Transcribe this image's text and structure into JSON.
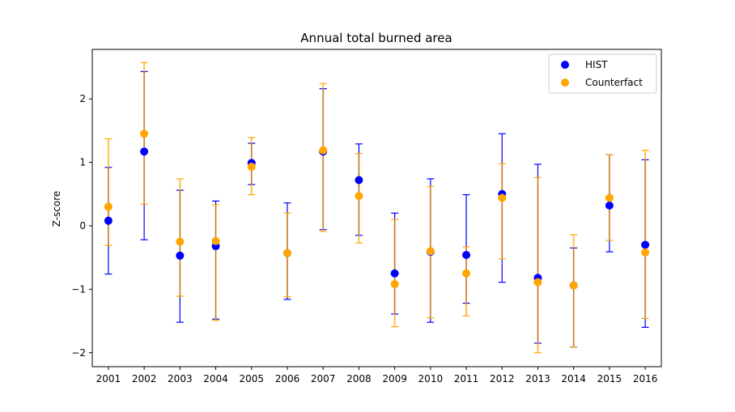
{
  "chart_data": {
    "type": "scatter",
    "title": "Annual total burned area",
    "xlabel": "",
    "ylabel": "Z-score",
    "categories": [
      "2001",
      "2002",
      "2003",
      "2004",
      "2005",
      "2006",
      "2007",
      "2008",
      "2009",
      "2010",
      "2011",
      "2012",
      "2013",
      "2014",
      "2015",
      "2016"
    ],
    "xlim": [
      2000.55,
      2016.45
    ],
    "ylim": [
      -2.22,
      2.78
    ],
    "yticks": [
      -2,
      -1,
      0,
      1,
      2
    ],
    "yticklabels": [
      "−2",
      "−1",
      "0",
      "1",
      "2"
    ],
    "grid": false,
    "legend_position": "top-right",
    "series": [
      {
        "name": "HIST",
        "color": "#0000ff",
        "values": [
          0.08,
          1.17,
          -0.47,
          -0.32,
          0.99,
          -0.43,
          1.17,
          0.72,
          -0.75,
          -0.41,
          -0.46,
          0.5,
          -0.82,
          -0.94,
          0.32,
          -0.3
        ],
        "lower": [
          -0.76,
          -0.22,
          -1.52,
          -1.47,
          0.65,
          -1.16,
          -0.06,
          -0.15,
          -1.39,
          -1.52,
          -1.22,
          -0.89,
          -1.85,
          -1.91,
          -0.41,
          -1.6
        ],
        "upper": [
          0.92,
          2.43,
          0.56,
          0.39,
          1.3,
          0.36,
          2.16,
          1.29,
          0.2,
          0.74,
          0.49,
          1.45,
          0.97,
          -0.35,
          1.12,
          1.04
        ]
      },
      {
        "name": "Counterfact",
        "color": "#ffa500",
        "values": [
          0.3,
          1.45,
          -0.25,
          -0.24,
          0.93,
          -0.43,
          1.19,
          0.47,
          -0.92,
          -0.4,
          -0.75,
          0.44,
          -0.89,
          -0.94,
          0.44,
          -0.42
        ],
        "lower": [
          -0.31,
          0.34,
          -1.11,
          -1.49,
          0.49,
          -1.12,
          -0.09,
          -0.27,
          -1.59,
          -1.45,
          -1.42,
          -0.52,
          -2.0,
          -1.91,
          -0.23,
          -1.46
        ],
        "upper": [
          1.37,
          2.57,
          0.74,
          0.33,
          1.39,
          0.2,
          2.24,
          1.14,
          0.1,
          0.62,
          -0.33,
          0.98,
          0.76,
          -0.14,
          1.12,
          1.19
        ]
      }
    ]
  }
}
